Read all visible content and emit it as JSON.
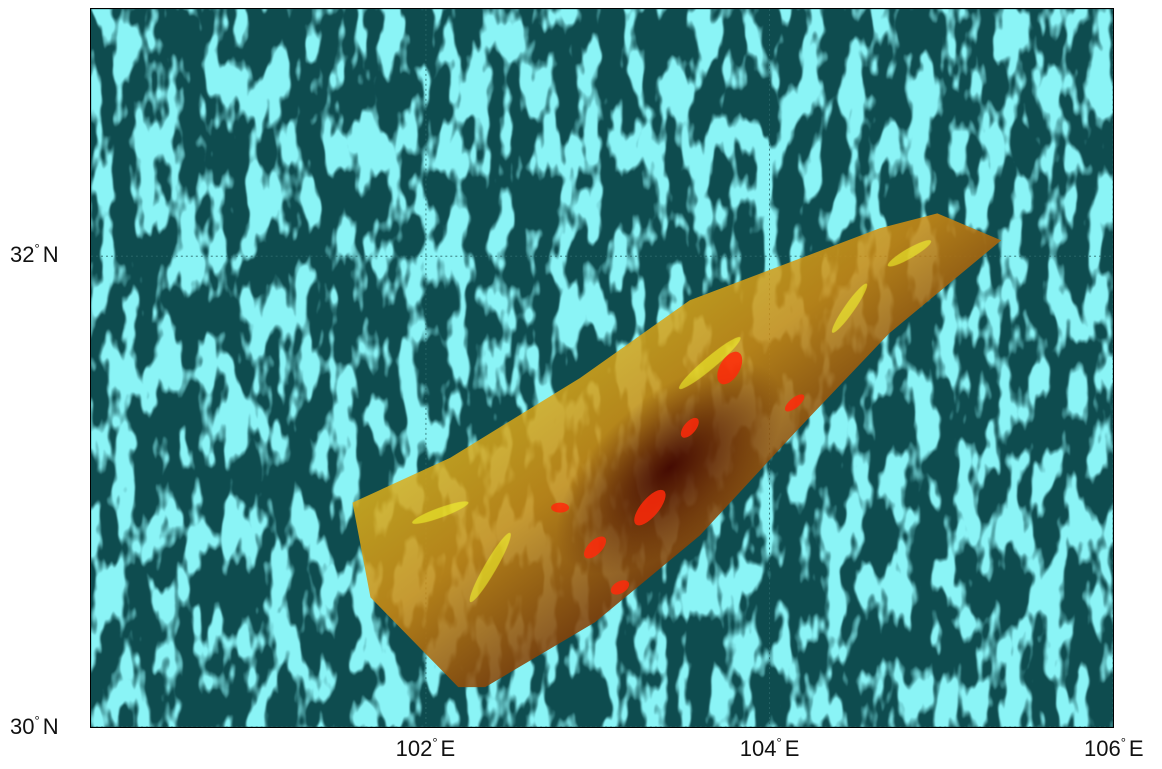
{
  "map": {
    "lat_range": [
      30,
      33.05
    ],
    "lon_range": [
      100.05,
      106.0
    ],
    "background_color": "#0e4c4f",
    "terrain_color": "#41e6ec",
    "grid": true,
    "overlay_colors": [
      "#f7ff2e",
      "#ff2a0a",
      "#3b0000"
    ],
    "lat_ticks": [
      {
        "value": 30,
        "deg": "°",
        "dir": "N",
        "num": "30"
      },
      {
        "value": 32,
        "deg": "°",
        "dir": "N",
        "num": "32"
      }
    ],
    "lon_ticks": [
      {
        "value": 102,
        "deg": "°",
        "dir": "E",
        "num": "102"
      },
      {
        "value": 104,
        "deg": "°",
        "dir": "E",
        "num": "104"
      },
      {
        "value": 106,
        "deg": "°",
        "dir": "E",
        "num": "106"
      }
    ]
  }
}
